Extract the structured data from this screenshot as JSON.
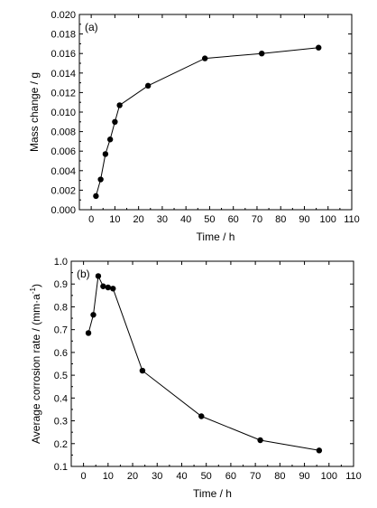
{
  "chart_data": [
    {
      "type": "line",
      "panel_label": "(a)",
      "xlabel": "Time / h",
      "ylabel": "Mass change / g",
      "xlim": [
        -5,
        110
      ],
      "ylim": [
        0,
        0.02
      ],
      "x_ticks": [
        0,
        10,
        20,
        30,
        40,
        50,
        60,
        70,
        80,
        90,
        100,
        110
      ],
      "x_tick_labels": [
        "0",
        "10",
        "20",
        "30",
        "40",
        "50",
        "60",
        "70",
        "80",
        "90",
        "100",
        "110"
      ],
      "y_ticks": [
        0,
        0.002,
        0.004,
        0.006,
        0.008,
        0.01,
        0.012,
        0.014,
        0.016,
        0.018,
        0.02
      ],
      "y_tick_labels": [
        "0.000",
        "0.002",
        "0.004",
        "0.006",
        "0.008",
        "0.010",
        "0.012",
        "0.014",
        "0.016",
        "0.018",
        "0.020"
      ],
      "grid": false,
      "series": [
        {
          "color": "#000000",
          "marker": "circle",
          "x": [
            2,
            4,
            6,
            8,
            10,
            12,
            24,
            48,
            72,
            96
          ],
          "y": [
            0.0014,
            0.0031,
            0.0057,
            0.0072,
            0.009,
            0.0107,
            0.0127,
            0.0155,
            0.016,
            0.0166
          ]
        }
      ]
    },
    {
      "type": "line",
      "panel_label": "(b)",
      "xlabel": "Time / h",
      "ylabel": "Average corrosion rate / (mm·a",
      "ylabel_superscript": "-1",
      "ylabel_tail": ")",
      "xlim": [
        -5,
        110
      ],
      "ylim": [
        0.1,
        1.0
      ],
      "x_ticks": [
        0,
        10,
        20,
        30,
        40,
        50,
        60,
        70,
        80,
        90,
        100,
        110
      ],
      "x_tick_labels": [
        "0",
        "10",
        "20",
        "30",
        "40",
        "50",
        "60",
        "70",
        "80",
        "90",
        "100",
        "110"
      ],
      "y_ticks": [
        0.1,
        0.2,
        0.3,
        0.4,
        0.5,
        0.6,
        0.7,
        0.8,
        0.9,
        1.0
      ],
      "y_tick_labels": [
        "0.1",
        "0.2",
        "0.3",
        "0.4",
        "0.5",
        "0.6",
        "0.7",
        "0.8",
        "0.9",
        "1.0"
      ],
      "grid": false,
      "series": [
        {
          "color": "#000000",
          "marker": "circle",
          "x": [
            2,
            4,
            6,
            8,
            10,
            12,
            24,
            48,
            72,
            96
          ],
          "y": [
            0.685,
            0.765,
            0.935,
            0.89,
            0.885,
            0.88,
            0.52,
            0.32,
            0.215,
            0.17
          ]
        }
      ]
    }
  ]
}
